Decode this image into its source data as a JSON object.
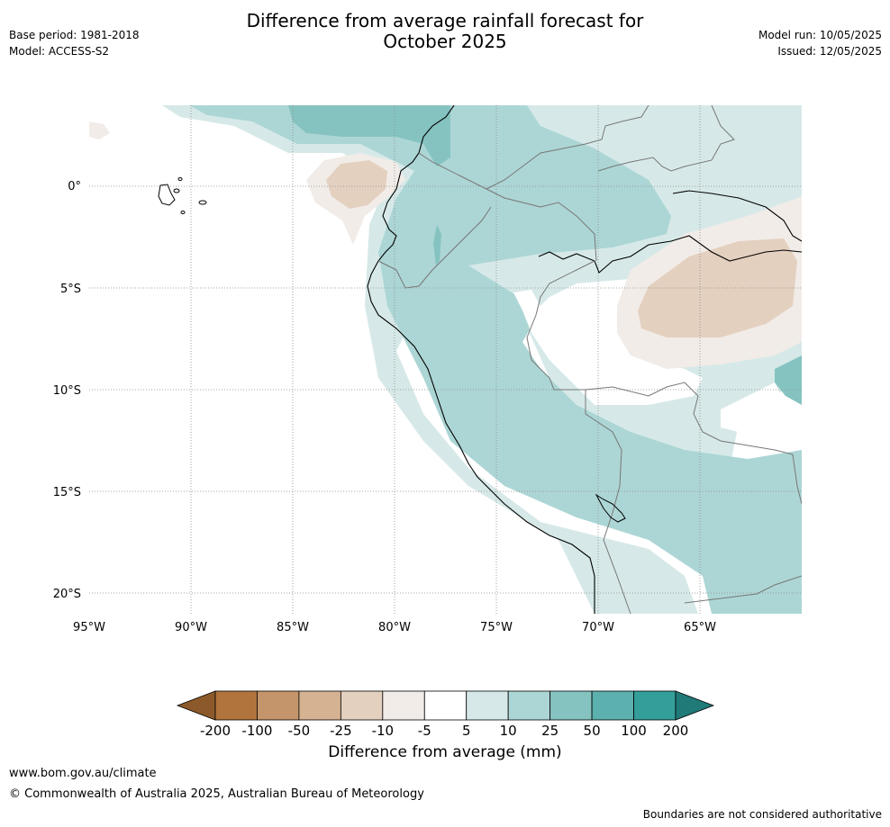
{
  "title_line1": "Difference from average rainfall forecast for",
  "title_line2": "October 2025",
  "meta": {
    "base_period": "Base period: 1981-2018",
    "model": "Model: ACCESS-S2",
    "model_run": "Model run: 10/05/2025",
    "issued": "Issued: 12/05/2025"
  },
  "axes": {
    "lon_ticks": [
      "95°W",
      "90°W",
      "85°W",
      "80°W",
      "75°W",
      "70°W",
      "65°W"
    ],
    "lat_ticks": [
      "0°",
      "5°S",
      "10°S",
      "15°S",
      "20°S"
    ]
  },
  "colorbar": {
    "label": "Difference from average (mm)",
    "ticks": [
      "-200",
      "-100",
      "-50",
      "-25",
      "-10",
      "-5",
      "5",
      "10",
      "25",
      "50",
      "100",
      "200"
    ],
    "colors": [
      "#8c5a2a",
      "#b0743c",
      "#c4956a",
      "#d4b292",
      "#e4d0bf",
      "#f1ece8",
      "#ffffff",
      "#d6e9e8",
      "#acd6d5",
      "#85c3c1",
      "#5cb0ae",
      "#339e9a",
      "#1f7a78"
    ]
  },
  "footer": {
    "url": "www.bom.gov.au/climate",
    "copyright": "© Commonwealth of Australia 2025, Australian Bureau of Meteorology",
    "note": "Boundaries are not considered authoritative"
  }
}
